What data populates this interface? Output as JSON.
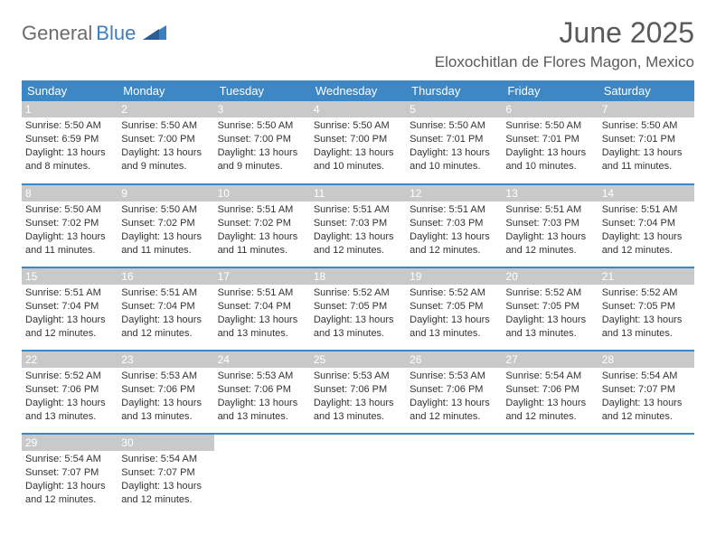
{
  "logo": {
    "part1": "General",
    "part2": "Blue"
  },
  "title": "June 2025",
  "location": "Eloxochitlan de Flores Magon, Mexico",
  "colors": {
    "header_bg": "#3c87c4",
    "header_text": "#ffffff",
    "daynum_bg": "#c9c9c9",
    "border": "#3c87c4",
    "logo_gray": "#6c6c6c",
    "logo_blue": "#3c7fc0"
  },
  "weekdays": [
    "Sunday",
    "Monday",
    "Tuesday",
    "Wednesday",
    "Thursday",
    "Friday",
    "Saturday"
  ],
  "days": [
    {
      "n": 1,
      "sunrise": "5:50 AM",
      "sunset": "6:59 PM",
      "daylight": "13 hours and 8 minutes."
    },
    {
      "n": 2,
      "sunrise": "5:50 AM",
      "sunset": "7:00 PM",
      "daylight": "13 hours and 9 minutes."
    },
    {
      "n": 3,
      "sunrise": "5:50 AM",
      "sunset": "7:00 PM",
      "daylight": "13 hours and 9 minutes."
    },
    {
      "n": 4,
      "sunrise": "5:50 AM",
      "sunset": "7:00 PM",
      "daylight": "13 hours and 10 minutes."
    },
    {
      "n": 5,
      "sunrise": "5:50 AM",
      "sunset": "7:01 PM",
      "daylight": "13 hours and 10 minutes."
    },
    {
      "n": 6,
      "sunrise": "5:50 AM",
      "sunset": "7:01 PM",
      "daylight": "13 hours and 10 minutes."
    },
    {
      "n": 7,
      "sunrise": "5:50 AM",
      "sunset": "7:01 PM",
      "daylight": "13 hours and 11 minutes."
    },
    {
      "n": 8,
      "sunrise": "5:50 AM",
      "sunset": "7:02 PM",
      "daylight": "13 hours and 11 minutes."
    },
    {
      "n": 9,
      "sunrise": "5:50 AM",
      "sunset": "7:02 PM",
      "daylight": "13 hours and 11 minutes."
    },
    {
      "n": 10,
      "sunrise": "5:51 AM",
      "sunset": "7:02 PM",
      "daylight": "13 hours and 11 minutes."
    },
    {
      "n": 11,
      "sunrise": "5:51 AM",
      "sunset": "7:03 PM",
      "daylight": "13 hours and 12 minutes."
    },
    {
      "n": 12,
      "sunrise": "5:51 AM",
      "sunset": "7:03 PM",
      "daylight": "13 hours and 12 minutes."
    },
    {
      "n": 13,
      "sunrise": "5:51 AM",
      "sunset": "7:03 PM",
      "daylight": "13 hours and 12 minutes."
    },
    {
      "n": 14,
      "sunrise": "5:51 AM",
      "sunset": "7:04 PM",
      "daylight": "13 hours and 12 minutes."
    },
    {
      "n": 15,
      "sunrise": "5:51 AM",
      "sunset": "7:04 PM",
      "daylight": "13 hours and 12 minutes."
    },
    {
      "n": 16,
      "sunrise": "5:51 AM",
      "sunset": "7:04 PM",
      "daylight": "13 hours and 12 minutes."
    },
    {
      "n": 17,
      "sunrise": "5:51 AM",
      "sunset": "7:04 PM",
      "daylight": "13 hours and 13 minutes."
    },
    {
      "n": 18,
      "sunrise": "5:52 AM",
      "sunset": "7:05 PM",
      "daylight": "13 hours and 13 minutes."
    },
    {
      "n": 19,
      "sunrise": "5:52 AM",
      "sunset": "7:05 PM",
      "daylight": "13 hours and 13 minutes."
    },
    {
      "n": 20,
      "sunrise": "5:52 AM",
      "sunset": "7:05 PM",
      "daylight": "13 hours and 13 minutes."
    },
    {
      "n": 21,
      "sunrise": "5:52 AM",
      "sunset": "7:05 PM",
      "daylight": "13 hours and 13 minutes."
    },
    {
      "n": 22,
      "sunrise": "5:52 AM",
      "sunset": "7:06 PM",
      "daylight": "13 hours and 13 minutes."
    },
    {
      "n": 23,
      "sunrise": "5:53 AM",
      "sunset": "7:06 PM",
      "daylight": "13 hours and 13 minutes."
    },
    {
      "n": 24,
      "sunrise": "5:53 AM",
      "sunset": "7:06 PM",
      "daylight": "13 hours and 13 minutes."
    },
    {
      "n": 25,
      "sunrise": "5:53 AM",
      "sunset": "7:06 PM",
      "daylight": "13 hours and 13 minutes."
    },
    {
      "n": 26,
      "sunrise": "5:53 AM",
      "sunset": "7:06 PM",
      "daylight": "13 hours and 12 minutes."
    },
    {
      "n": 27,
      "sunrise": "5:54 AM",
      "sunset": "7:06 PM",
      "daylight": "13 hours and 12 minutes."
    },
    {
      "n": 28,
      "sunrise": "5:54 AM",
      "sunset": "7:07 PM",
      "daylight": "13 hours and 12 minutes."
    },
    {
      "n": 29,
      "sunrise": "5:54 AM",
      "sunset": "7:07 PM",
      "daylight": "13 hours and 12 minutes."
    },
    {
      "n": 30,
      "sunrise": "5:54 AM",
      "sunset": "7:07 PM",
      "daylight": "13 hours and 12 minutes."
    }
  ],
  "labels": {
    "sunrise": "Sunrise:",
    "sunset": "Sunset:",
    "daylight": "Daylight:"
  }
}
